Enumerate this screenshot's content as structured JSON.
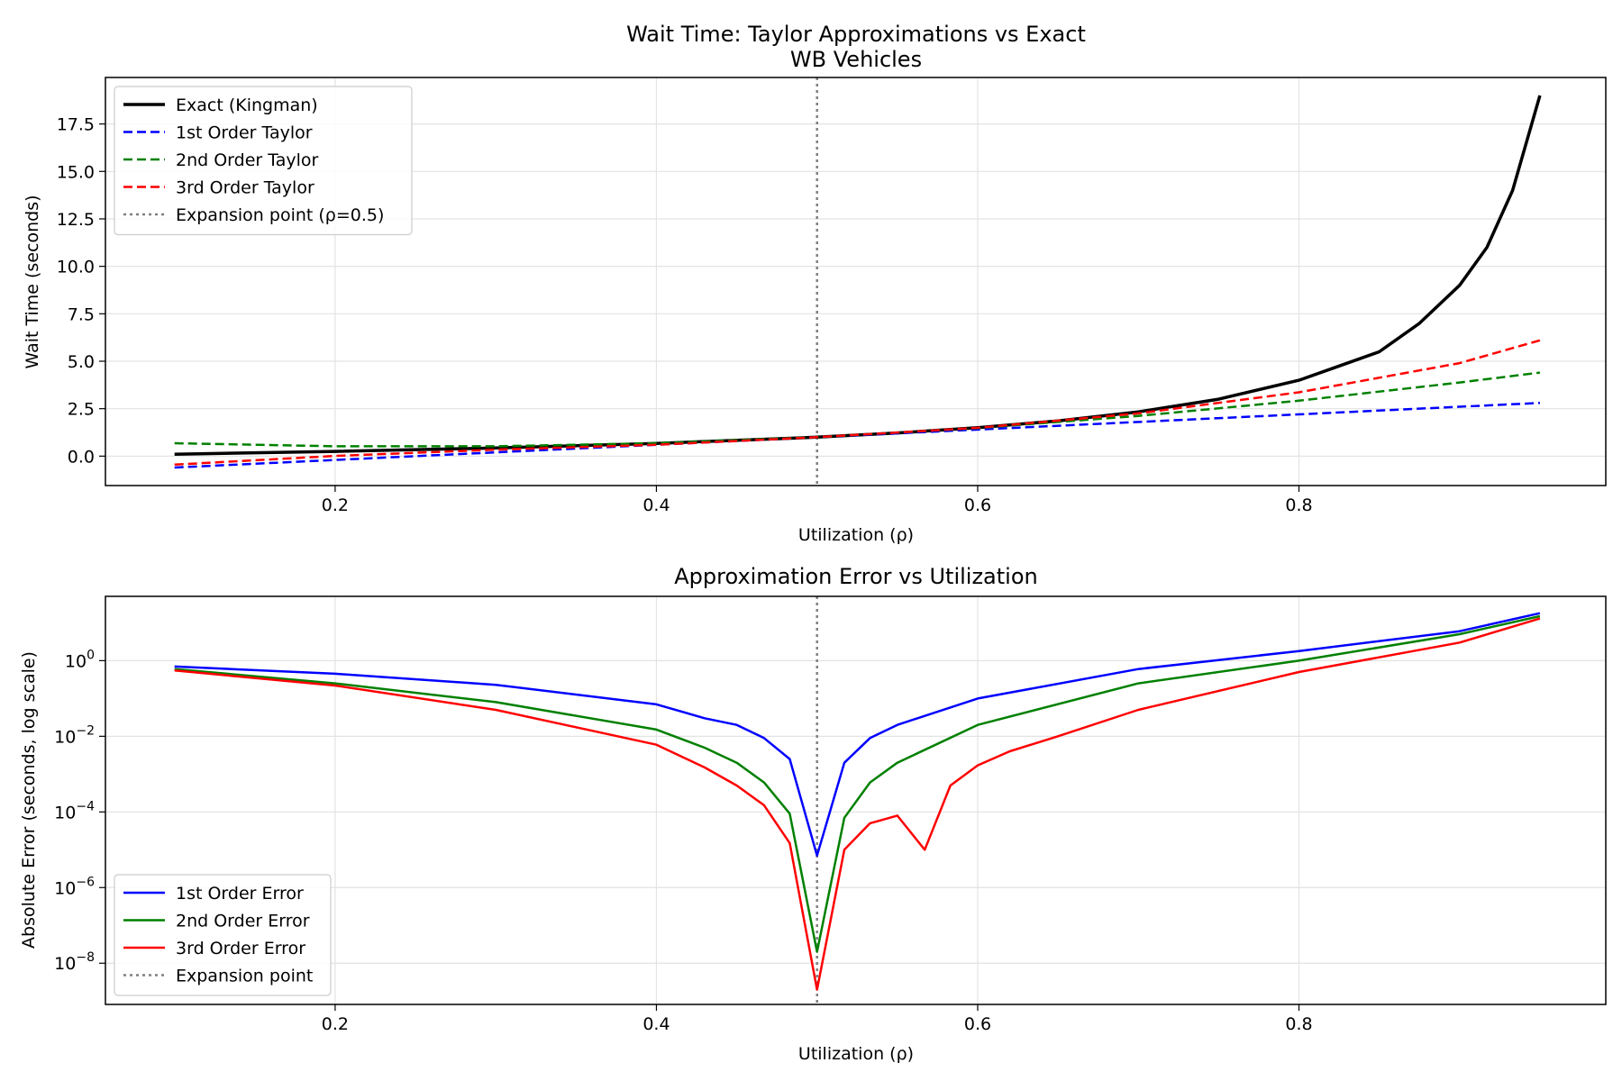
{
  "chart_data": [
    {
      "type": "line",
      "title": "Wait Time: Taylor Approximations vs Exact",
      "subtitle": "WB Vehicles",
      "xlabel": "Utilization (ρ)",
      "ylabel": "Wait Time (seconds)",
      "xlim": [
        0.057,
        0.991
      ],
      "ylim": [
        -1.55,
        19.95
      ],
      "xticks": [
        {
          "v": 0.2,
          "label": "0.2"
        },
        {
          "v": 0.4,
          "label": "0.4"
        },
        {
          "v": 0.6,
          "label": "0.6"
        },
        {
          "v": 0.8,
          "label": "0.8"
        }
      ],
      "yticks": [
        {
          "v": 0,
          "label": "0.0"
        },
        {
          "v": 2.5,
          "label": "2.5"
        },
        {
          "v": 5,
          "label": "5.0"
        },
        {
          "v": 7.5,
          "label": "7.5"
        },
        {
          "v": 10,
          "label": "10.0"
        },
        {
          "v": 12.5,
          "label": "12.5"
        },
        {
          "v": 15,
          "label": "15.0"
        },
        {
          "v": 17.5,
          "label": "17.5"
        }
      ],
      "grid": true,
      "legend_position": "upper-left",
      "vline": {
        "x": 0.5,
        "name": "Expansion point (ρ=0.5)",
        "color": "#808080",
        "dash": "dotted"
      },
      "series": [
        {
          "name": "Exact (Kingman)",
          "color": "#000000",
          "dash": "solid",
          "width": 3,
          "x": [
            0.1,
            0.2,
            0.3,
            0.4,
            0.5,
            0.55,
            0.6,
            0.65,
            0.7,
            0.75,
            0.8,
            0.825,
            0.85,
            0.875,
            0.9,
            0.917,
            0.933,
            0.95
          ],
          "y": [
            0.1,
            0.25,
            0.43,
            0.67,
            1.0,
            1.22,
            1.5,
            1.86,
            2.33,
            3.0,
            4.0,
            4.75,
            5.5,
            7.0,
            9.0,
            11.0,
            14.0,
            19.0
          ]
        },
        {
          "name": "1st Order Taylor",
          "color": "#0000ff",
          "dash": "dashed",
          "width": 2,
          "x": [
            0.1,
            0.5,
            0.95
          ],
          "y": [
            -0.6,
            1.0,
            2.8
          ]
        },
        {
          "name": "2nd Order Taylor",
          "color": "#008000",
          "dash": "dashed",
          "width": 2,
          "x": [
            0.1,
            0.2,
            0.3,
            0.4,
            0.5,
            0.6,
            0.7,
            0.8,
            0.9,
            0.95
          ],
          "y": [
            0.68,
            0.52,
            0.52,
            0.68,
            1.0,
            1.48,
            2.12,
            2.92,
            3.88,
            4.4
          ]
        },
        {
          "name": "3rd Order Taylor",
          "color": "#ff0000",
          "dash": "dashed",
          "width": 2,
          "x": [
            0.1,
            0.2,
            0.3,
            0.4,
            0.5,
            0.6,
            0.7,
            0.8,
            0.9,
            0.95
          ],
          "y": [
            -0.45,
            0.01,
            0.34,
            0.6,
            1.0,
            1.49,
            2.25,
            3.36,
            4.9,
            6.1
          ]
        }
      ]
    },
    {
      "type": "line",
      "title": "Approximation Error vs Utilization",
      "xlabel": "Utilization (ρ)",
      "ylabel": "Absolute Error (seconds, log scale)",
      "xlim": [
        0.057,
        0.991
      ],
      "yscale": "log",
      "ylim_log10": [
        -9.09,
        1.7
      ],
      "xticks": [
        {
          "v": 0.2,
          "label": "0.2"
        },
        {
          "v": 0.4,
          "label": "0.4"
        },
        {
          "v": 0.6,
          "label": "0.6"
        },
        {
          "v": 0.8,
          "label": "0.8"
        }
      ],
      "yticks": [
        {
          "exp": 0,
          "base": "10",
          "sup": "0"
        },
        {
          "exp": -2,
          "base": "10",
          "sup": "−2"
        },
        {
          "exp": -4,
          "base": "10",
          "sup": "−4"
        },
        {
          "exp": -6,
          "base": "10",
          "sup": "−6"
        },
        {
          "exp": -8,
          "base": "10",
          "sup": "−8"
        }
      ],
      "grid": true,
      "legend_position": "lower-left",
      "vline": {
        "x": 0.5,
        "name": "Expansion point",
        "color": "#808080",
        "dash": "dotted"
      },
      "series": [
        {
          "name": "1st Order Error",
          "color": "#0000ff",
          "dash": "solid",
          "width": 2,
          "x": [
            0.1,
            0.2,
            0.3,
            0.4,
            0.43,
            0.45,
            0.467,
            0.483,
            0.5,
            0.517,
            0.533,
            0.55,
            0.6,
            0.7,
            0.8,
            0.9,
            0.95
          ],
          "y": [
            0.7,
            0.45,
            0.23,
            0.07,
            0.03,
            0.02,
            0.009,
            0.0025,
            7e-06,
            0.002,
            0.009,
            0.02,
            0.1,
            0.6,
            1.8,
            6.0,
            18.0
          ]
        },
        {
          "name": "2nd Order Error",
          "color": "#008000",
          "dash": "solid",
          "width": 2,
          "x": [
            0.1,
            0.2,
            0.3,
            0.4,
            0.43,
            0.45,
            0.467,
            0.483,
            0.5,
            0.517,
            0.533,
            0.55,
            0.6,
            0.7,
            0.8,
            0.9,
            0.95
          ],
          "y": [
            0.6,
            0.25,
            0.08,
            0.015,
            0.005,
            0.002,
            0.0006,
            9e-05,
            2e-08,
            7e-05,
            0.0006,
            0.002,
            0.02,
            0.25,
            1.0,
            5.0,
            15.0
          ]
        },
        {
          "name": "3rd Order Error",
          "color": "#ff0000",
          "dash": "solid",
          "width": 2,
          "x": [
            0.1,
            0.2,
            0.3,
            0.4,
            0.43,
            0.45,
            0.467,
            0.483,
            0.5,
            0.517,
            0.533,
            0.55,
            0.567,
            0.583,
            0.6,
            0.62,
            0.65,
            0.7,
            0.8,
            0.9,
            0.95
          ],
          "y": [
            0.55,
            0.22,
            0.05,
            0.006,
            0.0015,
            0.0005,
            0.00015,
            1.5e-05,
            2e-09,
            1e-05,
            5e-05,
            8e-05,
            1e-05,
            0.0005,
            0.0017,
            0.004,
            0.01,
            0.05,
            0.5,
            3.0,
            13.0
          ]
        }
      ]
    }
  ]
}
